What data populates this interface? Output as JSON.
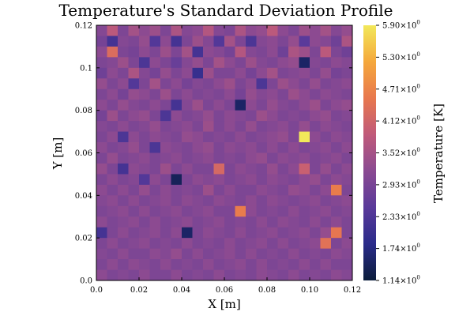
{
  "chart_data": {
    "type": "heatmap",
    "title": "Temperature's Standard Deviation Profile",
    "xlabel": "X [m]",
    "ylabel": "Y [m]",
    "colorbar_label": "Temperature [K]",
    "xlim": [
      0.0,
      0.12
    ],
    "ylim": [
      0.0,
      0.12
    ],
    "x_ticks": [
      "0.0",
      "0.02",
      "0.04",
      "0.06",
      "0.08",
      "0.10",
      "0.12"
    ],
    "y_ticks": [
      "0.0",
      "0.02",
      "0.04",
      "0.06",
      "0.08",
      "0.1",
      "0.12"
    ],
    "colorbar_ticks": [
      {
        "mant": "1.14",
        "exp": "0"
      },
      {
        "mant": "1.74",
        "exp": "0"
      },
      {
        "mant": "2.33",
        "exp": "0"
      },
      {
        "mant": "2.93",
        "exp": "0"
      },
      {
        "mant": "3.52",
        "exp": "0"
      },
      {
        "mant": "4.12",
        "exp": "0"
      },
      {
        "mant": "4.71",
        "exp": "0"
      },
      {
        "mant": "5.30",
        "exp": "0"
      },
      {
        "mant": "5.90",
        "exp": "0"
      }
    ],
    "colorbar_range": [
      1.14,
      5.9
    ],
    "colormap": [
      "#0b1d3b",
      "#2a2b8a",
      "#5a3a9a",
      "#8a4a92",
      "#c05a7a",
      "#e8784e",
      "#f5a83c",
      "#f2e85a"
    ],
    "grid": {
      "nx": 24,
      "ny": 24
    },
    "values": [
      [
        3.1,
        3.8,
        3.0,
        3.5,
        3.2,
        3.4,
        3.0,
        3.6,
        3.1,
        3.2,
        3.7,
        3.1,
        3.0,
        3.6,
        3.2,
        3.3,
        3.8,
        3.2,
        3.0,
        3.4,
        3.2,
        3.5,
        3.1,
        3.3
      ],
      [
        2.9,
        2.2,
        3.1,
        3.0,
        3.3,
        2.4,
        3.2,
        2.2,
        3.0,
        3.4,
        3.1,
        2.4,
        3.5,
        3.0,
        2.3,
        3.1,
        3.2,
        3.0,
        3.3,
        2.5,
        3.2,
        3.1,
        2.8,
        3.6
      ],
      [
        3.2,
        4.3,
        3.0,
        2.9,
        3.2,
        3.0,
        3.4,
        3.0,
        3.5,
        2.2,
        3.2,
        3.1,
        2.9,
        3.7,
        3.1,
        3.0,
        3.2,
        2.8,
        3.6,
        3.4,
        3.0,
        3.8,
        3.0,
        2.8
      ],
      [
        3.0,
        3.1,
        3.4,
        3.0,
        2.3,
        3.2,
        3.0,
        2.7,
        3.1,
        3.3,
        3.0,
        3.5,
        3.2,
        3.0,
        3.4,
        3.1,
        3.0,
        3.2,
        3.3,
        1.5,
        3.1,
        3.0,
        3.2,
        3.1
      ],
      [
        2.8,
        3.2,
        3.0,
        3.6,
        3.1,
        2.9,
        3.3,
        3.0,
        3.2,
        2.0,
        3.4,
        3.0,
        3.0,
        3.2,
        2.9,
        3.2,
        3.5,
        3.0,
        3.1,
        3.2,
        3.0,
        3.3,
        2.9,
        3.0
      ],
      [
        3.3,
        3.0,
        3.2,
        2.4,
        3.0,
        3.5,
        3.0,
        3.2,
        2.9,
        3.1,
        3.0,
        3.2,
        3.4,
        3.0,
        3.2,
        2.3,
        3.0,
        3.4,
        3.2,
        3.0,
        3.3,
        3.0,
        3.1,
        3.2
      ],
      [
        3.0,
        3.2,
        2.9,
        3.3,
        3.2,
        3.0,
        3.4,
        3.0,
        3.2,
        3.0,
        3.1,
        3.0,
        3.2,
        2.9,
        3.3,
        3.1,
        3.2,
        3.0,
        3.4,
        3.2,
        3.0,
        3.2,
        3.1,
        3.0
      ],
      [
        3.2,
        3.0,
        3.3,
        3.1,
        3.0,
        3.2,
        3.0,
        2.2,
        3.1,
        3.4,
        3.0,
        3.2,
        3.0,
        1.5,
        3.2,
        3.0,
        3.3,
        3.1,
        3.0,
        3.2,
        3.4,
        3.0,
        3.2,
        3.3
      ],
      [
        2.9,
        3.4,
        3.0,
        3.2,
        3.3,
        3.0,
        2.3,
        3.2,
        3.0,
        3.1,
        3.3,
        3.0,
        3.2,
        3.1,
        3.0,
        3.4,
        3.2,
        3.0,
        3.1,
        3.0,
        3.2,
        3.3,
        3.0,
        3.1
      ],
      [
        3.1,
        3.0,
        3.2,
        3.0,
        3.1,
        3.3,
        3.0,
        3.1,
        3.2,
        3.0,
        3.4,
        3.0,
        3.2,
        3.0,
        3.3,
        3.0,
        3.1,
        3.2,
        3.0,
        3.3,
        3.0,
        3.2,
        3.1,
        3.0
      ],
      [
        3.0,
        3.2,
        2.3,
        3.2,
        3.0,
        3.2,
        3.1,
        3.0,
        3.3,
        3.2,
        3.0,
        3.1,
        3.0,
        3.2,
        3.0,
        3.1,
        3.2,
        3.3,
        3.0,
        5.9,
        3.2,
        3.0,
        3.2,
        3.1
      ],
      [
        3.2,
        3.0,
        3.1,
        3.3,
        3.0,
        2.3,
        3.2,
        3.1,
        3.0,
        3.2,
        3.3,
        3.0,
        3.2,
        3.1,
        3.2,
        3.0,
        3.2,
        3.0,
        3.2,
        3.0,
        3.1,
        3.2,
        3.0,
        3.2
      ],
      [
        3.0,
        3.3,
        3.0,
        3.1,
        3.2,
        3.0,
        3.1,
        3.2,
        3.0,
        3.1,
        3.2,
        3.0,
        3.1,
        3.0,
        3.2,
        3.3,
        3.0,
        3.2,
        3.1,
        3.2,
        3.0,
        3.1,
        3.2,
        3.0
      ],
      [
        3.3,
        3.0,
        2.2,
        3.2,
        3.1,
        3.0,
        3.4,
        3.0,
        3.2,
        3.0,
        3.0,
        4.2,
        3.0,
        3.2,
        3.1,
        3.0,
        3.3,
        3.0,
        3.2,
        4.0,
        3.0,
        3.3,
        3.0,
        3.2
      ],
      [
        3.0,
        3.2,
        3.0,
        3.1,
        2.4,
        3.2,
        3.0,
        1.4,
        3.0,
        3.2,
        3.1,
        3.2,
        3.0,
        3.1,
        3.2,
        3.0,
        3.2,
        3.1,
        3.0,
        3.2,
        3.3,
        3.0,
        3.2,
        3.1
      ],
      [
        3.2,
        3.0,
        3.2,
        3.0,
        3.3,
        3.0,
        3.2,
        3.0,
        3.1,
        3.0,
        3.4,
        3.0,
        3.2,
        3.0,
        3.0,
        3.2,
        3.1,
        3.0,
        3.3,
        3.2,
        3.0,
        3.2,
        4.6,
        3.0
      ],
      [
        3.1,
        3.2,
        3.0,
        3.2,
        3.0,
        3.1,
        3.2,
        3.0,
        3.2,
        3.1,
        3.0,
        3.2,
        3.1,
        3.0,
        3.2,
        3.0,
        3.2,
        3.1,
        3.0,
        3.1,
        3.2,
        3.0,
        3.1,
        3.2
      ],
      [
        3.0,
        3.1,
        3.2,
        3.0,
        3.2,
        3.0,
        3.1,
        3.2,
        3.0,
        3.1,
        3.2,
        3.0,
        3.0,
        4.6,
        3.2,
        3.0,
        3.1,
        3.0,
        3.2,
        3.0,
        3.1,
        3.2,
        3.0,
        3.1
      ],
      [
        3.2,
        3.0,
        3.1,
        3.2,
        3.0,
        3.2,
        3.0,
        3.1,
        3.2,
        3.0,
        3.1,
        3.2,
        3.0,
        3.1,
        3.0,
        3.2,
        3.0,
        3.2,
        3.1,
        3.0,
        3.2,
        3.0,
        3.2,
        3.0
      ],
      [
        2.2,
        3.0,
        3.2,
        3.0,
        3.1,
        3.2,
        3.0,
        3.2,
        1.5,
        3.0,
        3.2,
        3.1,
        3.0,
        3.2,
        3.0,
        3.1,
        3.2,
        3.0,
        3.1,
        3.2,
        3.0,
        3.3,
        4.5,
        3.0
      ],
      [
        3.0,
        3.2,
        3.0,
        3.1,
        3.2,
        3.0,
        3.1,
        3.0,
        3.2,
        3.0,
        3.1,
        3.0,
        3.2,
        3.0,
        3.1,
        3.2,
        3.0,
        3.2,
        3.0,
        3.1,
        3.2,
        4.4,
        3.0,
        3.2
      ],
      [
        3.1,
        3.0,
        3.2,
        3.0,
        3.0,
        3.2,
        3.1,
        3.3,
        3.0,
        3.2,
        3.0,
        3.1,
        3.2,
        3.0,
        3.2,
        3.0,
        3.1,
        3.0,
        3.2,
        3.0,
        3.1,
        3.0,
        3.2,
        3.1
      ],
      [
        3.0,
        3.2,
        3.0,
        3.2,
        3.1,
        3.0,
        3.2,
        3.0,
        3.1,
        3.0,
        3.2,
        3.0,
        3.1,
        3.2,
        3.0,
        3.2,
        3.0,
        3.1,
        3.0,
        3.2,
        3.0,
        3.2,
        3.0,
        3.0
      ],
      [
        3.2,
        3.0,
        3.1,
        3.0,
        3.2,
        3.0,
        3.0,
        3.2,
        3.0,
        3.1,
        3.0,
        3.2,
        3.0,
        3.1,
        3.0,
        3.2,
        3.1,
        3.0,
        3.2,
        3.0,
        3.1,
        3.0,
        3.2,
        3.1
      ]
    ]
  }
}
